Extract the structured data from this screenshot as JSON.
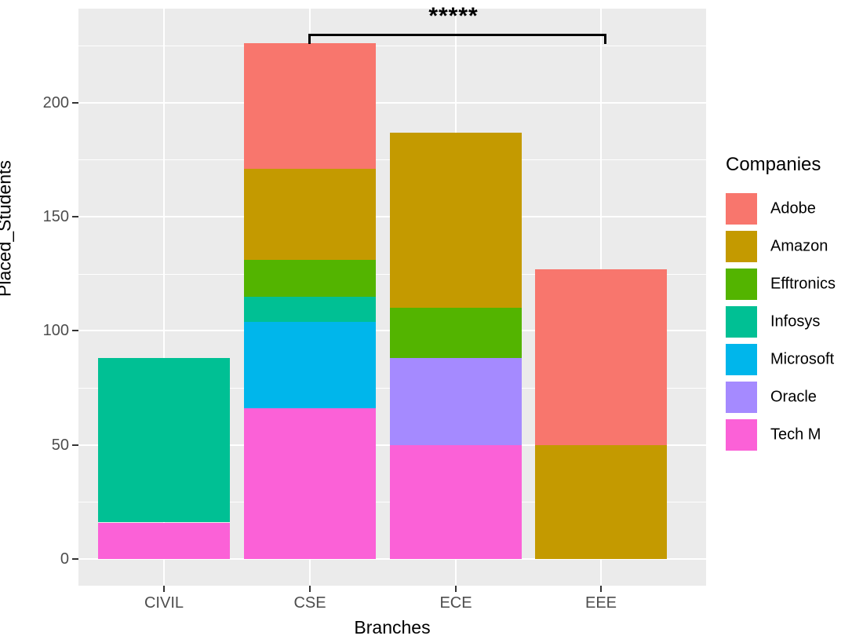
{
  "chart_data": {
    "type": "bar",
    "stacked": true,
    "title": "",
    "xlabel": "Branches",
    "ylabel": "Placed_Students",
    "categories": [
      "CIVIL",
      "CSE",
      "ECE",
      "EEE"
    ],
    "series": [
      {
        "name": "Adobe",
        "color": "#F8766D",
        "values": [
          0,
          55,
          0,
          77
        ]
      },
      {
        "name": "Amazon",
        "color": "#C49A00",
        "values": [
          0,
          40,
          77,
          50
        ]
      },
      {
        "name": "Efftronics",
        "color": "#53B400",
        "values": [
          0,
          16,
          22,
          0
        ]
      },
      {
        "name": "Infosys",
        "color": "#00C094",
        "values": [
          72,
          11,
          0,
          0
        ]
      },
      {
        "name": "Microsoft",
        "color": "#00B6EB",
        "values": [
          0,
          38,
          0,
          0
        ]
      },
      {
        "name": "Oracle",
        "color": "#A58AFF",
        "values": [
          0,
          0,
          38,
          0
        ]
      },
      {
        "name": "Tech M",
        "color": "#FB61D7",
        "values": [
          16,
          66,
          50,
          0
        ]
      }
    ],
    "totals": [
      88,
      226,
      187,
      127
    ],
    "yticks": [
      "0",
      "50",
      "100",
      "150",
      "200"
    ],
    "ytick_values": [
      0,
      50,
      100,
      150,
      200
    ],
    "minor_grid_values": [
      25,
      75,
      125,
      175,
      225
    ],
    "ylim": [
      0,
      241
    ],
    "grid": true,
    "legend_title": "Companies",
    "legend_position": "right",
    "annotation": {
      "label": "*****",
      "from": "CSE",
      "to": "EEE"
    },
    "panel_background": "#EBEBEB",
    "gridline_color": "#ffffff",
    "axis_text_color": "#4D4D4D"
  }
}
